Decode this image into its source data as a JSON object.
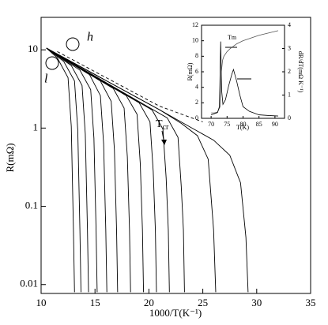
{
  "chart_data": [
    {
      "type": "line",
      "y_log": true,
      "xlabel": "1000/T(K⁻¹)",
      "ylabel": "R(mΩ)",
      "xlim": [
        10,
        35
      ],
      "xticks": [
        10,
        15,
        20,
        25,
        30,
        35
      ],
      "ylim": [
        0.0077,
        26
      ],
      "yticks": [
        0.01,
        0.1,
        1,
        10
      ],
      "annotations": {
        "h": "h",
        "l": "l",
        "tcr": {
          "main": "T",
          "sub": "cr"
        }
      },
      "series": [
        {
          "color": "#000",
          "x": [
            10.5,
            11.5,
            12.5,
            12.8,
            13,
            13.1
          ],
          "values": [
            10.5,
            7.9,
            4.4,
            1.05,
            0.05,
            0.008
          ]
        },
        {
          "color": "#000",
          "x": [
            10.5,
            12.1,
            13.1,
            13.4,
            13.6,
            13.7
          ],
          "values": [
            10.5,
            7.1,
            4.0,
            0.95,
            0.05,
            0.008
          ]
        },
        {
          "color": "#000",
          "x": [
            10.5,
            12.8,
            13.8,
            14.1,
            14.3,
            14.4
          ],
          "values": [
            10.5,
            6.3,
            3.5,
            0.84,
            0.05,
            0.008
          ]
        },
        {
          "color": "#000",
          "x": [
            10.5,
            13.6,
            14.6,
            14.9,
            15.1,
            15.2
          ],
          "values": [
            10.5,
            5.5,
            3.1,
            0.74,
            0.05,
            0.008
          ]
        },
        {
          "color": "#000",
          "x": [
            10.5,
            14.5,
            15.5,
            15.8,
            16,
            16.1
          ],
          "values": [
            10.5,
            4.8,
            2.6,
            0.63,
            0.05,
            0.008
          ]
        },
        {
          "color": "#000",
          "x": [
            10.5,
            15.5,
            16.5,
            16.8,
            17,
            17.1
          ],
          "values": [
            10.5,
            4.0,
            2.2,
            0.53,
            0.05,
            0.008
          ]
        },
        {
          "color": "#000",
          "x": [
            10.5,
            16.7,
            17.7,
            18.0,
            18.2,
            18.3
          ],
          "values": [
            10.5,
            3.2,
            1.8,
            0.43,
            0.05,
            0.008
          ]
        },
        {
          "color": "#000",
          "x": [
            10.5,
            17.9,
            18.9,
            19.2,
            19.4,
            19.5
          ],
          "values": [
            10.5,
            2.6,
            1.5,
            0.35,
            0.05,
            0.008
          ]
        },
        {
          "color": "#000",
          "x": [
            10.5,
            19.1,
            20.1,
            20.4,
            20.6,
            20.7
          ],
          "values": [
            10.5,
            2.1,
            1.2,
            0.28,
            0.05,
            0.008
          ]
        },
        {
          "color": "#000",
          "x": [
            10.5,
            20.3,
            21.3,
            21.6,
            21.8,
            21.9
          ],
          "values": [
            10.5,
            1.7,
            0.97,
            0.23,
            0.05,
            0.008
          ]
        },
        {
          "color": "#000",
          "x": [
            10.5,
            21.7,
            22.7,
            23,
            23.2,
            23.3
          ],
          "values": [
            10.5,
            1.35,
            0.76,
            0.18,
            0.05,
            0.008
          ]
        },
        {
          "color": "#000",
          "x": [
            10.5,
            21,
            23,
            24.5,
            25.5,
            26,
            26.2
          ],
          "values": [
            10.5,
            1.71,
            1.15,
            0.8,
            0.4,
            0.05,
            0.008
          ]
        },
        {
          "color": "#000",
          "x": [
            10.5,
            21,
            24,
            26,
            27.5,
            28.5,
            29,
            29.2
          ],
          "values": [
            10.5,
            1.71,
            1.0,
            0.7,
            0.45,
            0.2,
            0.04,
            0.008
          ]
        },
        {
          "color": "#000",
          "dashed": true,
          "x": [
            11.5,
            21,
            25
          ],
          "values": [
            9.5,
            1.9,
            1.2
          ]
        }
      ]
    },
    {
      "type": "line",
      "xlabel": "T(K)",
      "ylabel": "R(mΩ)",
      "y2label": "dR/dT(mΩ K⁻¹)",
      "xlim": [
        67,
        93
      ],
      "xticks": [
        70,
        75,
        80,
        85,
        90
      ],
      "ylim": [
        0,
        12
      ],
      "yticks": [
        0,
        2,
        4,
        6,
        8,
        10,
        12
      ],
      "y2lim": [
        0,
        4
      ],
      "y2ticks": [
        0,
        1,
        2,
        3,
        4
      ],
      "annotations": {
        "tm": "Tm"
      },
      "series": [
        {
          "color": "#555",
          "x": [
            70,
            71,
            72,
            72.8,
            73.2,
            73.6,
            74,
            75,
            76,
            78,
            80,
            85,
            91
          ],
          "values": [
            0.7,
            0.7,
            0.8,
            1.5,
            6,
            7.5,
            8,
            8.6,
            9,
            9.6,
            10,
            10.7,
            11.3
          ]
        },
        {
          "color": "#000",
          "axis": "y2",
          "x": [
            70,
            71,
            72,
            72.6,
            73,
            73.3,
            73.7,
            74.5,
            75.5,
            76.5,
            77,
            78,
            79,
            80,
            82,
            85,
            88,
            91
          ],
          "values": [
            0.15,
            0.2,
            0.25,
            0.5,
            3.3,
            1.2,
            0.6,
            0.8,
            1.4,
            1.9,
            2.1,
            1.6,
            1.0,
            0.5,
            0.3,
            0.15,
            0.12,
            0.1
          ]
        }
      ]
    }
  ]
}
